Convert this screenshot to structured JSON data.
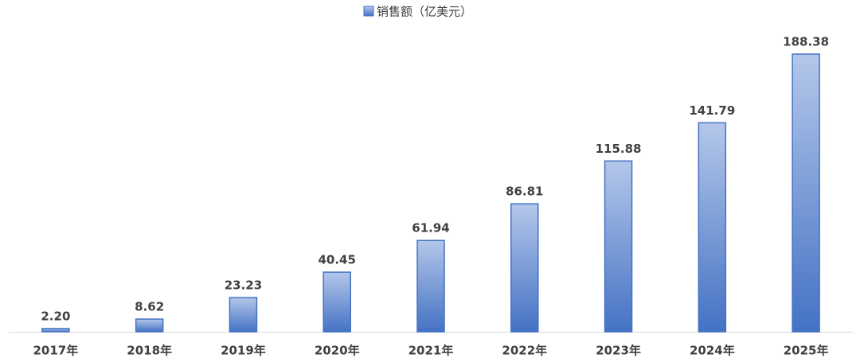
{
  "chart_data": {
    "type": "bar",
    "categories": [
      "2017年",
      "2018年",
      "2019年",
      "2020年",
      "2021年",
      "2022年",
      "2023年",
      "2024年",
      "2025年"
    ],
    "series": [
      {
        "name": "销售额（亿美元）",
        "color": "#4472c4",
        "values": [
          2.2,
          8.62,
          23.23,
          40.45,
          61.94,
          86.81,
          115.88,
          141.79,
          188.38
        ],
        "value_labels": [
          "2.20",
          "8.62",
          "23.23",
          "40.45",
          "61.94",
          "86.81",
          "115.88",
          "141.79",
          "188.38"
        ]
      }
    ],
    "legend": "top"
  }
}
